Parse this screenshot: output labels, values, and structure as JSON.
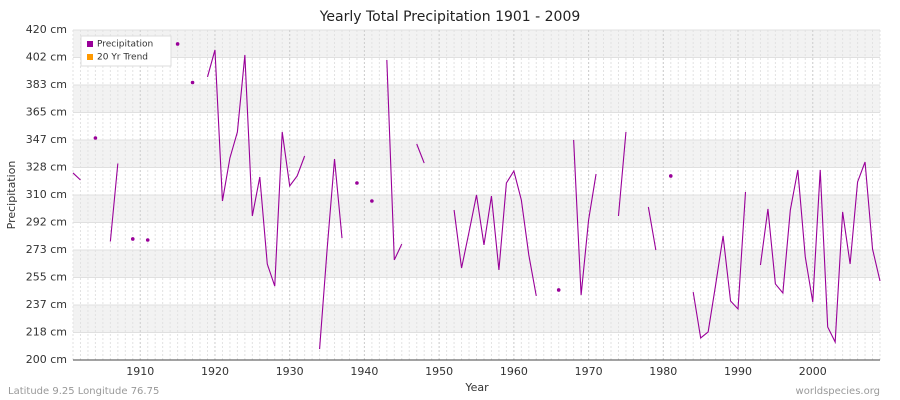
{
  "chart_data": {
    "type": "line",
    "title": "Yearly Total Precipitation 1901 - 2009",
    "x_label": "Year",
    "y_label": "Precipitation",
    "footer_left": "Latitude 9.25 Longitude 76.75",
    "footer_right": "worldspecies.org",
    "legend_position": "upper-left",
    "grid": true,
    "x": [
      1901,
      1902,
      1903,
      1904,
      1905,
      1906,
      1907,
      1908,
      1909,
      1910,
      1911,
      1912,
      1913,
      1914,
      1915,
      1916,
      1917,
      1918,
      1919,
      1920,
      1921,
      1922,
      1923,
      1924,
      1925,
      1926,
      1927,
      1928,
      1929,
      1930,
      1931,
      1932,
      1933,
      1934,
      1935,
      1936,
      1937,
      1938,
      1939,
      1940,
      1941,
      1942,
      1943,
      1944,
      1945,
      1946,
      1947,
      1948,
      1949,
      1950,
      1951,
      1952,
      1953,
      1954,
      1955,
      1956,
      1957,
      1958,
      1959,
      1960,
      1961,
      1962,
      1963,
      1964,
      1965,
      1966,
      1967,
      1968,
      1969,
      1970,
      1971,
      1972,
      1973,
      1974,
      1975,
      1976,
      1977,
      1978,
      1979,
      1980,
      1981,
      1982,
      1983,
      1984,
      1985,
      1986,
      1987,
      1988,
      1989,
      1990,
      1991,
      1992,
      1993,
      1994,
      1995,
      1996,
      1997,
      1998,
      1999,
      2000,
      2001,
      2002,
      2003,
      2004,
      2005,
      2006,
      2007,
      2008,
      2009
    ],
    "series": [
      {
        "name": "Precipitation",
        "color": "#990099",
        "values": [
          324.7,
          320,
          null,
          348,
          null,
          279,
          331,
          null,
          280.7,
          null,
          280,
          null,
          null,
          null,
          410.7,
          null,
          385,
          null,
          388.7,
          406.7,
          306,
          334.7,
          352,
          403.3,
          296,
          322,
          264,
          249.3,
          352,
          316,
          322.7,
          336,
          null,
          207.3,
          273.3,
          334,
          281.3,
          null,
          318,
          null,
          306,
          null,
          400,
          266.7,
          277.3,
          null,
          344,
          331.3,
          null,
          null,
          null,
          300,
          261.3,
          285.3,
          310,
          276.7,
          309.3,
          260,
          318,
          326,
          306.7,
          270,
          242.7,
          null,
          null,
          246.7,
          null,
          346.7,
          243.3,
          293.3,
          324,
          null,
          null,
          296,
          352,
          null,
          null,
          302,
          273.3,
          null,
          322.7,
          null,
          null,
          245.3,
          214.7,
          218.7,
          250,
          282.7,
          239.3,
          234,
          312,
          null,
          263.3,
          300.7,
          250.7,
          244.7,
          300,
          326.7,
          268.7,
          238.7,
          326.7,
          222,
          212,
          298.7,
          264,
          318.7,
          332,
          274,
          252.7
        ]
      },
      {
        "name": "20 Yr Trend",
        "color": "#ff9900"
      }
    ],
    "xlim": [
      1901,
      2009
    ],
    "xticks": [
      1910,
      1920,
      1930,
      1940,
      1950,
      1960,
      1970,
      1980,
      1990,
      2000
    ],
    "ylim": [
      200,
      420
    ],
    "yticks": [
      {
        "value": 200,
        "label": "200 cm"
      },
      {
        "value": 218.33,
        "label": "218 cm"
      },
      {
        "value": 236.67,
        "label": "237 cm"
      },
      {
        "value": 255,
        "label": "255 cm"
      },
      {
        "value": 273.33,
        "label": "273 cm"
      },
      {
        "value": 291.67,
        "label": "292 cm"
      },
      {
        "value": 310,
        "label": "310 cm"
      },
      {
        "value": 328.33,
        "label": "328 cm"
      },
      {
        "value": 346.67,
        "label": "347 cm"
      },
      {
        "value": 365,
        "label": "365 cm"
      },
      {
        "value": 383.33,
        "label": "383 cm"
      },
      {
        "value": 401.67,
        "label": "402 cm"
      },
      {
        "value": 420,
        "label": "420 cm"
      }
    ]
  }
}
